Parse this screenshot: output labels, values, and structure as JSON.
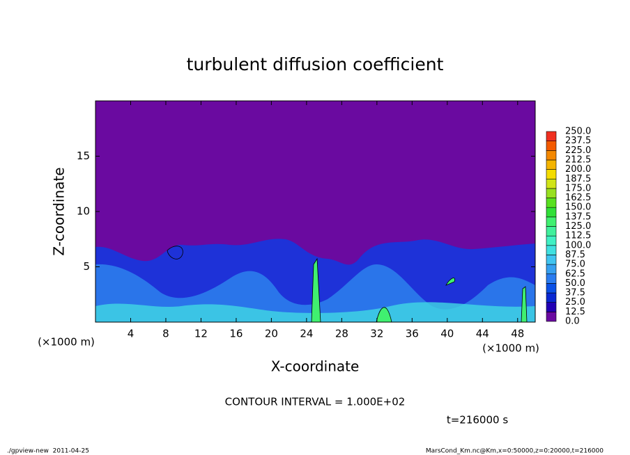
{
  "chart_data": {
    "type": "contour",
    "title": "turbulent diffusion coefficient",
    "x_label": "X-coordinate",
    "y_label": "Z-coordinate",
    "x_unit": "(×1000 m)",
    "y_unit": "(×1000 m)",
    "xlim": [
      0,
      50
    ],
    "ylim": [
      0,
      20
    ],
    "xticks": [
      4,
      8,
      12,
      16,
      20,
      24,
      28,
      32,
      36,
      40,
      44,
      48
    ],
    "yticks": [
      5,
      10,
      15
    ],
    "contour_interval": "CONTOUR INTERVAL = 1.000E+02",
    "time_label": "t=216000 s",
    "footer_left": "./gpview-new  2011-04-25",
    "footer_right": "MarsCond_Km.nc@Km,x=0:50000,z=0:20000,t=216000",
    "colorbar": {
      "ticks": [
        {
          "value": 0,
          "label": "0.0"
        },
        {
          "value": 12.5,
          "label": "12.5"
        },
        {
          "value": 25,
          "label": "25.0"
        },
        {
          "value": 37.5,
          "label": "37.5"
        },
        {
          "value": 50,
          "label": "50.0"
        },
        {
          "value": 62.5,
          "label": "62.5"
        },
        {
          "value": 75,
          "label": "75.0"
        },
        {
          "value": 87.5,
          "label": "87.5"
        },
        {
          "value": 100,
          "label": "100.0"
        },
        {
          "value": 112.5,
          "label": "112.5"
        },
        {
          "value": 125,
          "label": "125.0"
        },
        {
          "value": 137.5,
          "label": "137.5"
        },
        {
          "value": 150,
          "label": "150.0"
        },
        {
          "value": 162.5,
          "label": "162.5"
        },
        {
          "value": 175,
          "label": "175.0"
        },
        {
          "value": 187.5,
          "label": "187.5"
        },
        {
          "value": 200,
          "label": "200.0"
        },
        {
          "value": 212.5,
          "label": "212.5"
        },
        {
          "value": 225,
          "label": "225.0"
        },
        {
          "value": 237.5,
          "label": "237.5"
        },
        {
          "value": 250,
          "label": "250.0"
        }
      ],
      "colors": [
        "#6a0aa0",
        "#2200b4",
        "#0a28d2",
        "#0a50e6",
        "#2a7cf0",
        "#36a0f0",
        "#40c4f0",
        "#40e0e0",
        "#40f0c4",
        "#40f09c",
        "#40f070",
        "#30e038",
        "#58e020",
        "#98e020",
        "#d0e418",
        "#f4dc00",
        "#f4b400",
        "#f48800",
        "#f45a00",
        "#f03020"
      ]
    }
  }
}
